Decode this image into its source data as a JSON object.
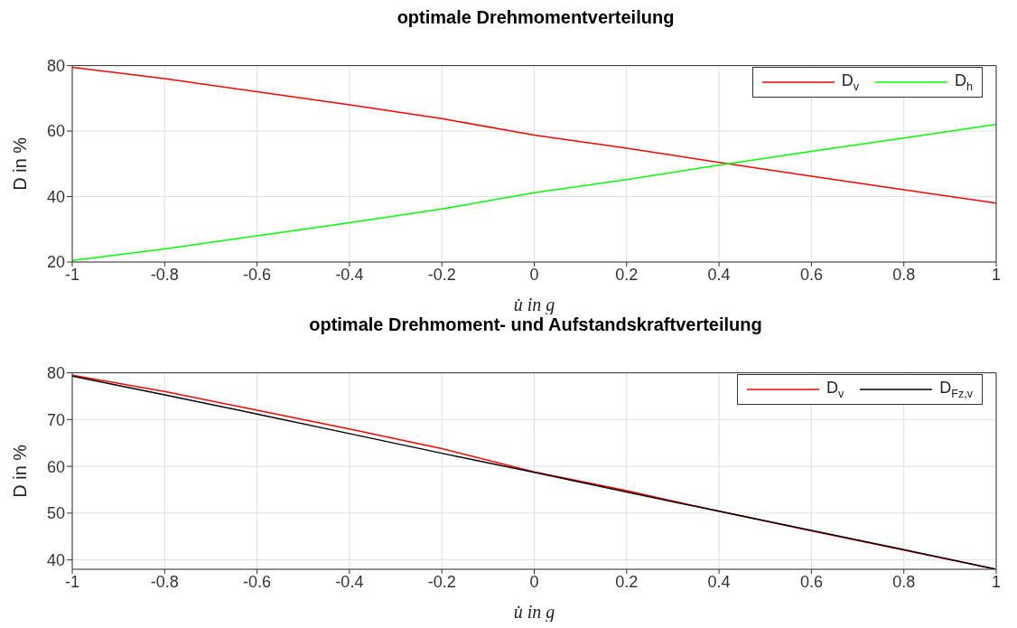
{
  "chart_data": [
    {
      "type": "line",
      "title": "optimale Drehmomentverteilung",
      "xlabel": "u̇ in g",
      "ylabel": "D in %",
      "x": [
        -1,
        -0.8,
        -0.6,
        -0.4,
        -0.2,
        0,
        0.2,
        0.4,
        0.6,
        0.8,
        1
      ],
      "series": [
        {
          "name": "D$_{v}$",
          "color": "#ff0000",
          "values": [
            79.5,
            76,
            72,
            68,
            63.8,
            58.8,
            54.8,
            50.4,
            46.2,
            42.1,
            38
          ]
        },
        {
          "name": "D$_{h}$",
          "color": "#00ff00",
          "values": [
            20.5,
            24,
            28,
            32,
            36.2,
            41.2,
            45.2,
            49.6,
            53.8,
            57.9,
            62
          ]
        }
      ],
      "xlim": [
        -1,
        1
      ],
      "xticks": [
        -1,
        -0.8,
        -0.6,
        -0.4,
        -0.2,
        0,
        0.2,
        0.4,
        0.6,
        0.8,
        1
      ],
      "ylim": [
        20,
        80
      ],
      "yticks": [
        20,
        40,
        60,
        80
      ],
      "grid": true,
      "legend": "top right",
      "marker": "none",
      "line_style": "solid"
    },
    {
      "type": "line",
      "title": "optimale Drehmoment- und Aufstandskraftverteilung",
      "xlabel": "u̇ in g",
      "ylabel": "D in %",
      "x": [
        -1,
        -0.8,
        -0.6,
        -0.4,
        -0.2,
        0,
        0.2,
        0.4,
        0.6,
        0.8,
        1
      ],
      "series": [
        {
          "name": "D$_{v}$",
          "color": "#ff0000",
          "values": [
            79.5,
            76,
            72,
            68,
            63.8,
            58.8,
            54.8,
            50.4,
            46.2,
            42.1,
            38
          ]
        },
        {
          "name": "D$_{Fz,v}$",
          "color": "#000000",
          "values": [
            79.3,
            75.3,
            71.2,
            67,
            62.8,
            58.7,
            54.5,
            50.4,
            46.3,
            42.2,
            38
          ]
        }
      ],
      "xlim": [
        -1,
        1
      ],
      "xticks": [
        -1,
        -0.8,
        -0.6,
        -0.4,
        -0.2,
        0,
        0.2,
        0.4,
        0.6,
        0.8,
        1
      ],
      "ylim": [
        38,
        80
      ],
      "yticks": [
        40,
        50,
        60,
        70,
        80
      ],
      "grid": true,
      "legend": "top right",
      "marker": "none",
      "line_style": "solid"
    }
  ]
}
